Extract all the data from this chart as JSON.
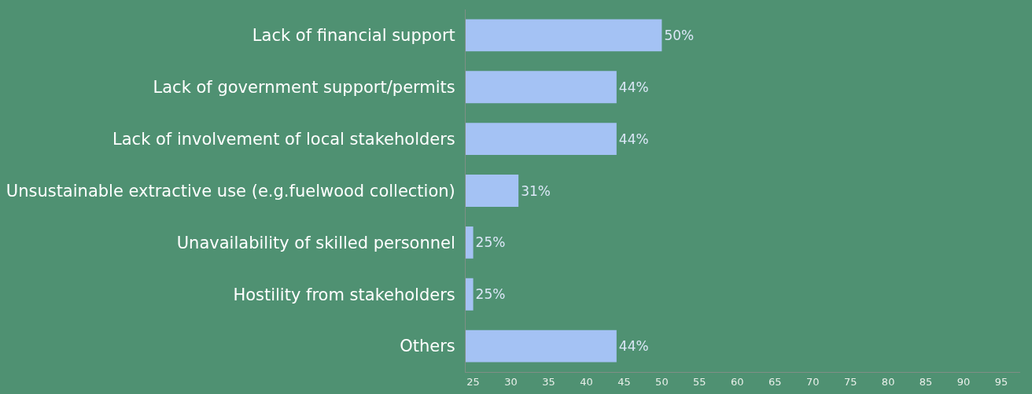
{
  "chart_data": {
    "type": "bar",
    "orientation": "horizontal",
    "categories": [
      "Lack of financial support",
      "Lack of government support/permits",
      "Lack of involvement of local stakeholders",
      "Unsustainable extractive use (e.g.fuelwood collection)",
      "Unavailability of skilled personnel",
      "Hostility from stakeholders",
      "Others"
    ],
    "values": [
      50,
      44,
      44,
      31,
      25,
      25,
      44
    ],
    "value_labels": [
      "50%",
      "44%",
      "44%",
      "31%",
      "25%",
      "25%",
      "44%"
    ],
    "color": "#a4c2f4",
    "xlim": [
      24,
      97.5
    ],
    "xticks": [
      25,
      30,
      35,
      40,
      45,
      50,
      55,
      60,
      65,
      70,
      75,
      80,
      85,
      90,
      95
    ],
    "grid": false,
    "legend": false
  }
}
